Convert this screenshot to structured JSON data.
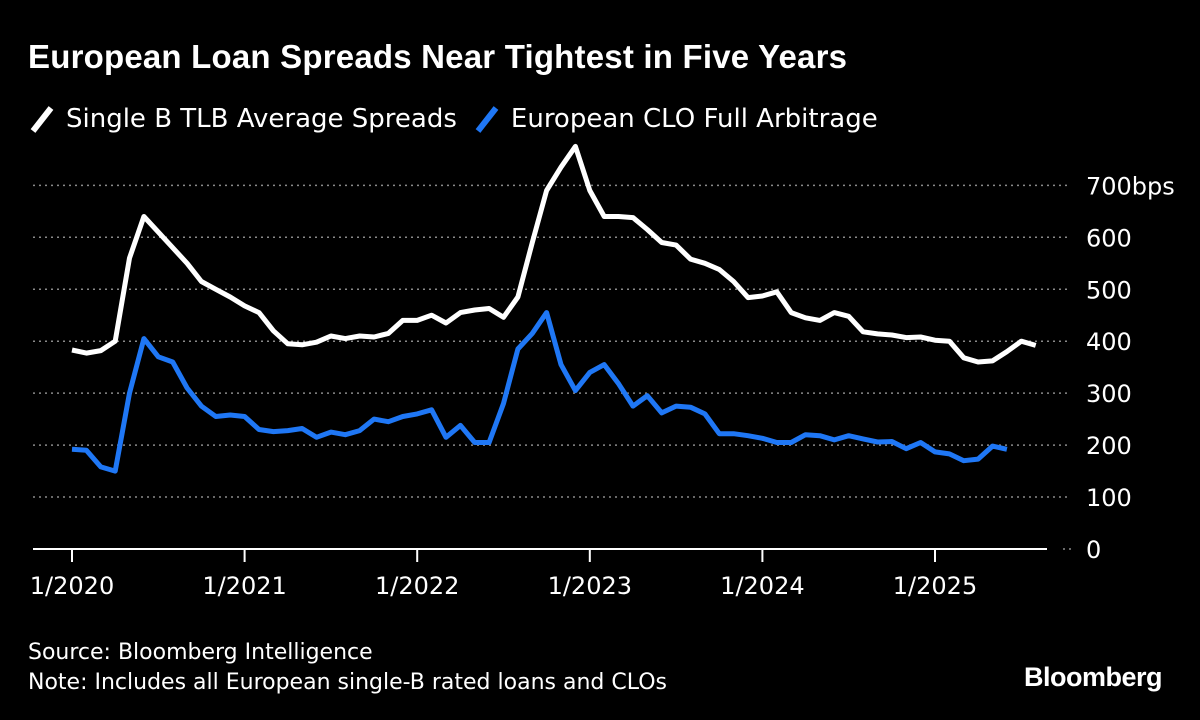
{
  "chart_data": {
    "type": "line",
    "title": "European Loan Spreads Near Tightest in Five Years",
    "xlabel": "",
    "ylabel": "",
    "ylim": [
      0,
      800
    ],
    "yticks": [
      0,
      100,
      200,
      300,
      400,
      500,
      600,
      700
    ],
    "ytick_labels": [
      "0",
      "100",
      "200",
      "300",
      "400",
      "500",
      "600",
      "700bps"
    ],
    "xticks": [
      2020.0,
      2021.0,
      2022.0,
      2023.0,
      2024.0,
      2025.0
    ],
    "xtick_labels": [
      "1/2020",
      "1/2021",
      "1/2022",
      "1/2023",
      "1/2024",
      "1/2025"
    ],
    "x_start": 2020.0,
    "x_step_months": 1,
    "grid": true,
    "legend_position": "top-left",
    "series": [
      {
        "name": "Single B TLB Average Spreads",
        "color": "#ffffff",
        "values": [
          383,
          377,
          382,
          400,
          560,
          640,
          610,
          580,
          550,
          515,
          500,
          485,
          468,
          455,
          420,
          395,
          393,
          398,
          410,
          405,
          410,
          408,
          415,
          440,
          440,
          450,
          435,
          455,
          460,
          463,
          446,
          485,
          590,
          690,
          735,
          775,
          690,
          640,
          640,
          638,
          615,
          590,
          585,
          558,
          550,
          538,
          515,
          484,
          487,
          495,
          455,
          445,
          440,
          455,
          448,
          418,
          414,
          412,
          407,
          408,
          402,
          400,
          368,
          360,
          362,
          380,
          400,
          392
        ]
      },
      {
        "name": "European CLO Full Arbitrage",
        "color": "#1f77f5",
        "values": [
          192,
          190,
          158,
          150,
          300,
          405,
          370,
          360,
          310,
          275,
          255,
          258,
          255,
          230,
          226,
          228,
          232,
          215,
          225,
          220,
          228,
          250,
          245,
          255,
          260,
          268,
          215,
          238,
          205,
          205,
          280,
          385,
          415,
          455,
          355,
          305,
          340,
          355,
          318,
          275,
          295,
          262,
          275,
          273,
          260,
          222,
          222,
          218,
          213,
          205,
          205,
          220,
          218,
          210,
          218,
          212,
          206,
          207,
          193,
          205,
          187,
          183,
          170,
          173,
          198,
          192
        ]
      }
    ]
  },
  "footer": {
    "source": "Source: Bloomberg Intelligence",
    "note": "Note: Includes all European single-B rated loans and CLOs",
    "brand": "Bloomberg"
  }
}
